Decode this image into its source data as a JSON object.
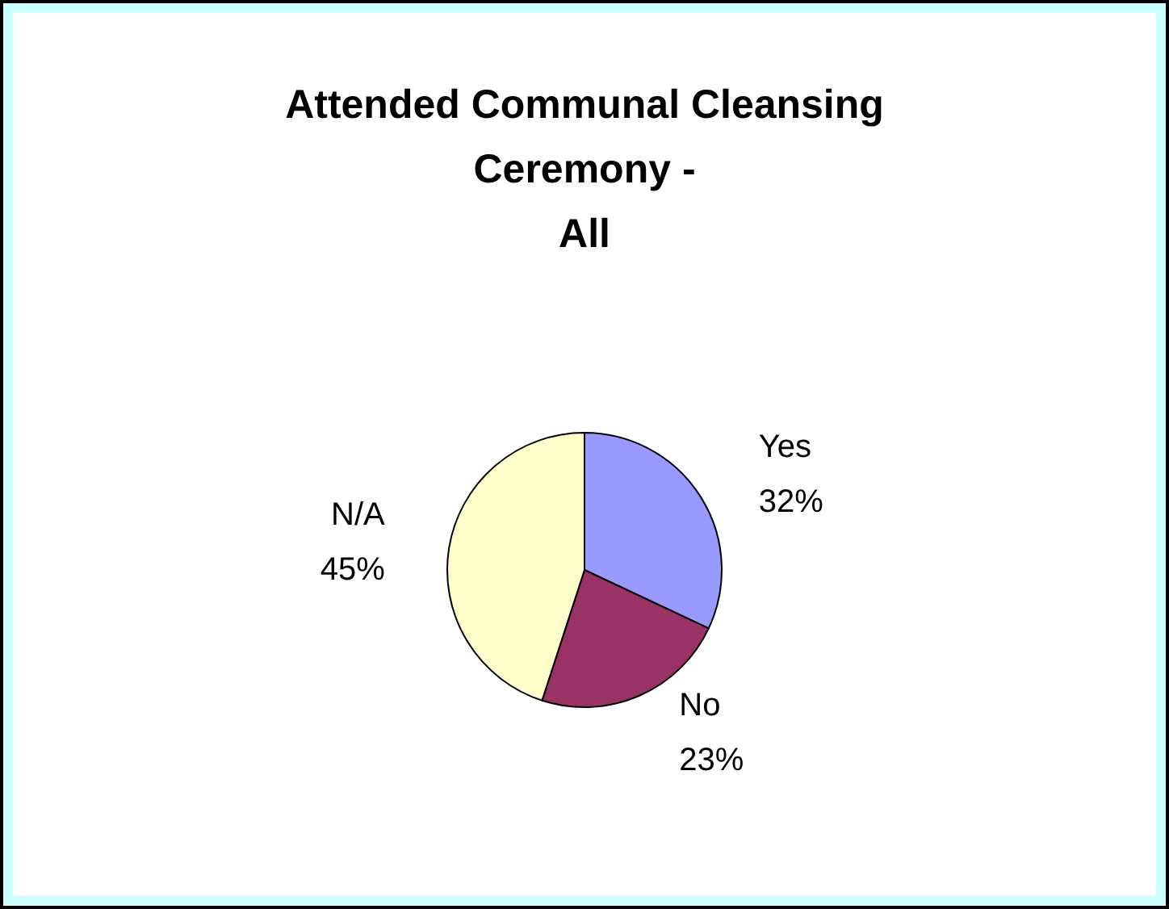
{
  "chart_data": {
    "type": "pie",
    "title": "Attended Communal Cleansing\nCeremony -\nAll",
    "categories": [
      "Yes",
      "No",
      "N/A"
    ],
    "values": [
      32,
      23,
      45
    ],
    "colors": [
      "#9999ff",
      "#993366",
      "#ffffcc"
    ],
    "legend": false,
    "value_labels": [
      "32%",
      "23%",
      "45%"
    ]
  }
}
